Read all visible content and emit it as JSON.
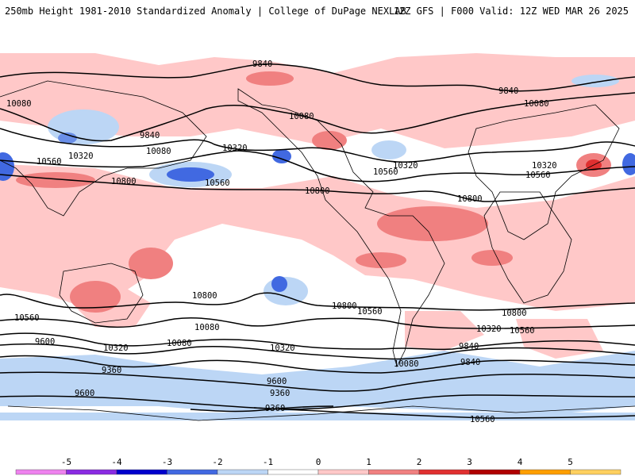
{
  "header": {
    "title": "250mb Height 1981-2010 Standardized Anomaly | College of DuPage NEXLAB",
    "run_info": "12Z GFS | F000 Valid: 12Z WED MAR 26 2025"
  },
  "legend": {
    "ticks": [
      "-5",
      "-4",
      "-3",
      "-2",
      "-1",
      "0",
      "1",
      "2",
      "3",
      "4",
      "5"
    ],
    "colors": [
      "#ee82ee",
      "#8a2be2",
      "#0000cd",
      "#4169e1",
      "#bcd6f5",
      "#ffffff",
      "#ffc8c8",
      "#f08080",
      "#e03030",
      "#b00000",
      "#ff9f00",
      "#ffd060"
    ]
  },
  "contour_labels": [
    "9840",
    "10080",
    "10320",
    "10560",
    "10800",
    "10080",
    "10320",
    "10560",
    "10800",
    "9840",
    "10080",
    "10320",
    "10560",
    "10800",
    "9840",
    "10080",
    "10320",
    "10560",
    "10800",
    "10800",
    "10560",
    "10320",
    "10080",
    "9840",
    "9600",
    "9360",
    "10800",
    "10560",
    "10320",
    "10080",
    "9840",
    "9600",
    "9360",
    "10320",
    "10080",
    "10320",
    "10560",
    "10800",
    "10560",
    "10320",
    "9840",
    "9600",
    "9360",
    "10560",
    "10800",
    "10080",
    "9840",
    "9600"
  ],
  "map": {
    "ocean": "#ffffff",
    "coast": "#000000",
    "contour_color": "#000000"
  }
}
